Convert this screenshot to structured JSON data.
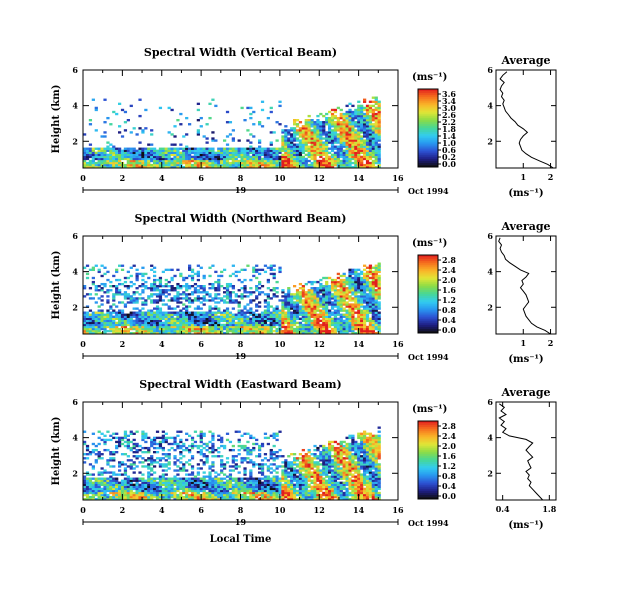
{
  "chart_data": [
    {
      "type": "heatmap",
      "title": "Spectral Width (Vertical Beam)",
      "ylabel": "Height (km)",
      "xticks": [
        "0",
        "2",
        "4",
        "6",
        "8",
        "10",
        "12",
        "14",
        "16"
      ],
      "yticks": [
        "2",
        "4",
        "6"
      ],
      "xlim": [
        0,
        16
      ],
      "ylim": [
        0.5,
        6
      ],
      "day_label": "19",
      "date_label": "Oct 1994",
      "colorbar": {
        "unit": "(ms⁻¹)",
        "ticks": [
          "3.6",
          "3.4",
          "3.0",
          "2.6",
          "2.2",
          "1.8",
          "1.4",
          "1.0",
          "0.6",
          "0.2",
          "0.0"
        ],
        "max": 3.6
      },
      "average": {
        "title": "Average",
        "xlabel": "(ms⁻¹)",
        "xticks": [
          "1",
          "2"
        ],
        "xlim": [
          0,
          2.2
        ],
        "yticks": [
          "2",
          "4",
          "6"
        ],
        "ylim": [
          0.5,
          6
        ],
        "heights": [
          0.5,
          0.7,
          0.9,
          1.1,
          1.3,
          1.5,
          1.7,
          1.9,
          2.1,
          2.3,
          2.5,
          2.7,
          2.9,
          3.1,
          3.3,
          3.5,
          3.7,
          3.9,
          4.1,
          4.3,
          4.5,
          4.7,
          4.9,
          5.1,
          5.3,
          5.5,
          5.7,
          5.9
        ],
        "values": [
          2.1,
          1.9,
          1.6,
          1.3,
          1.1,
          0.95,
          0.9,
          0.85,
          0.9,
          1.0,
          1.15,
          1.0,
          0.8,
          0.7,
          0.55,
          0.45,
          0.35,
          0.3,
          0.25,
          0.3,
          0.2,
          0.25,
          0.15,
          0.2,
          0.3,
          0.15,
          0.25,
          0.4
        ]
      }
    },
    {
      "type": "heatmap",
      "title": "Spectral Width (Northward Beam)",
      "ylabel": "Height (km)",
      "xticks": [
        "0",
        "2",
        "4",
        "6",
        "8",
        "10",
        "12",
        "14",
        "16"
      ],
      "yticks": [
        "2",
        "4",
        "6"
      ],
      "xlim": [
        0,
        16
      ],
      "ylim": [
        0.5,
        6
      ],
      "day_label": "19",
      "date_label": "Oct 1994",
      "colorbar": {
        "unit": "(ms⁻¹)",
        "ticks": [
          "2.8",
          "2.4",
          "2.0",
          "1.6",
          "1.2",
          "0.8",
          "0.4",
          "0.0"
        ],
        "max": 2.8
      },
      "average": {
        "title": "Average",
        "xlabel": "(ms⁻¹)",
        "xticks": [
          "1",
          "2"
        ],
        "xlim": [
          0,
          2.2
        ],
        "yticks": [
          "2",
          "4",
          "6"
        ],
        "ylim": [
          0.5,
          6
        ],
        "heights": [
          0.5,
          0.7,
          0.9,
          1.1,
          1.3,
          1.5,
          1.7,
          1.9,
          2.1,
          2.3,
          2.5,
          2.7,
          2.9,
          3.1,
          3.3,
          3.5,
          3.7,
          3.9,
          4.1,
          4.3,
          4.5,
          4.7,
          4.9,
          5.1,
          5.3,
          5.5,
          5.7,
          5.9
        ],
        "values": [
          2.0,
          1.8,
          1.5,
          1.3,
          1.2,
          1.1,
          1.05,
          1.0,
          1.1,
          1.2,
          1.15,
          1.1,
          1.0,
          0.9,
          1.0,
          0.95,
          1.1,
          1.2,
          0.9,
          0.7,
          0.5,
          0.35,
          0.3,
          0.2,
          0.15,
          0.2,
          0.1,
          0.15
        ]
      }
    },
    {
      "type": "heatmap",
      "title": "Spectral Width (Eastward Beam)",
      "ylabel": "Height (km)",
      "xticks": [
        "0",
        "2",
        "4",
        "6",
        "8",
        "10",
        "12",
        "14",
        "16"
      ],
      "yticks": [
        "2",
        "4",
        "6"
      ],
      "xlim": [
        0,
        16
      ],
      "ylim": [
        0.5,
        6
      ],
      "day_label": "19",
      "date_label": "Oct 1994",
      "xlabel": "Local Time",
      "colorbar": {
        "unit": "(ms⁻¹)",
        "ticks": [
          "2.8",
          "2.4",
          "2.0",
          "1.6",
          "1.2",
          "0.8",
          "0.4",
          "0.0"
        ],
        "max": 2.8
      },
      "average": {
        "title": "Average",
        "xlabel": "(ms⁻¹)",
        "xticks": [
          "0.4",
          "1.8"
        ],
        "xlim": [
          0.2,
          2.0
        ],
        "yticks": [
          "2",
          "4",
          "6"
        ],
        "ylim": [
          0.5,
          6
        ],
        "heights": [
          0.5,
          0.7,
          0.9,
          1.1,
          1.3,
          1.5,
          1.7,
          1.9,
          2.1,
          2.3,
          2.5,
          2.7,
          2.9,
          3.1,
          3.3,
          3.5,
          3.7,
          3.9,
          4.1,
          4.3,
          4.5,
          4.7,
          4.9,
          5.1,
          5.3,
          5.5,
          5.7,
          5.9
        ],
        "values": [
          1.6,
          1.5,
          1.4,
          1.3,
          1.2,
          1.25,
          1.15,
          1.2,
          1.1,
          1.25,
          1.2,
          1.15,
          1.3,
          1.2,
          1.1,
          1.2,
          1.3,
          1.1,
          0.6,
          0.4,
          0.5,
          0.35,
          0.45,
          0.3,
          0.5,
          0.35,
          0.45,
          0.3
        ]
      }
    }
  ]
}
